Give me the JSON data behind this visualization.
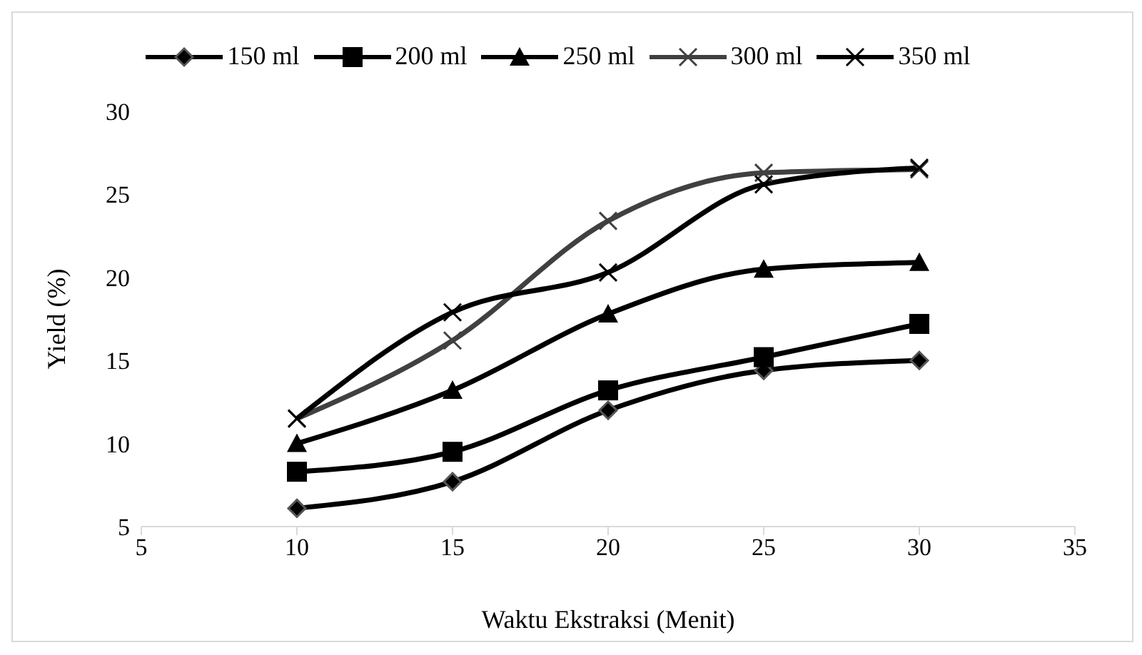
{
  "chart_data": {
    "type": "line",
    "xlabel": "Waktu Ekstraksi (Menit)",
    "ylabel": "Yield (%)",
    "x": [
      10,
      15,
      20,
      25,
      30
    ],
    "xlim": [
      5,
      35
    ],
    "xticks": [
      5,
      10,
      15,
      20,
      25,
      30,
      35
    ],
    "ylim": [
      5,
      30
    ],
    "yticks": [
      5,
      10,
      15,
      20,
      25,
      30
    ],
    "legend": "top",
    "grid": false,
    "series": [
      {
        "name": "150 ml",
        "color": "#000000",
        "marker": "diamond",
        "values": [
          6.1,
          7.7,
          12.0,
          14.4,
          15.0
        ]
      },
      {
        "name": "200 ml",
        "color": "#000000",
        "marker": "square",
        "values": [
          8.3,
          9.5,
          13.2,
          15.2,
          17.2
        ]
      },
      {
        "name": "250 ml",
        "color": "#000000",
        "marker": "triangle",
        "values": [
          10.0,
          13.2,
          17.8,
          20.5,
          20.9
        ]
      },
      {
        "name": "300 ml",
        "color": "#404040",
        "marker": "cross",
        "values": [
          11.5,
          16.2,
          23.4,
          26.3,
          26.5
        ]
      },
      {
        "name": "350 ml",
        "color": "#000000",
        "marker": "cross",
        "values": [
          11.5,
          17.9,
          20.3,
          25.6,
          26.6
        ]
      }
    ]
  }
}
